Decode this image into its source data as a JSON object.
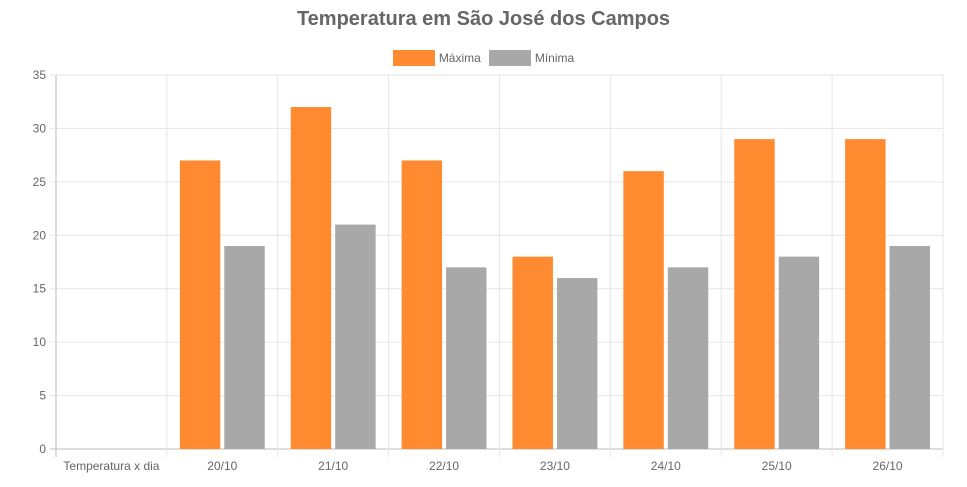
{
  "chart_data": {
    "type": "bar",
    "title": "Temperatura em São José dos Campos",
    "categories": [
      "Temperatura x dia",
      "20/10",
      "21/10",
      "22/10",
      "23/10",
      "24/10",
      "25/10",
      "26/10"
    ],
    "series": [
      {
        "name": "Máxima",
        "color": "#FF8A30",
        "values": [
          null,
          27,
          32,
          27,
          18,
          26,
          29,
          29
        ]
      },
      {
        "name": "Mínima",
        "color": "#A8A8A8",
        "values": [
          null,
          19,
          21,
          17,
          16,
          17,
          18,
          19
        ]
      }
    ],
    "ylim": [
      0,
      35
    ],
    "yticks": [
      0,
      5,
      10,
      15,
      20,
      25,
      30,
      35
    ],
    "grid": true,
    "legend_position": "top"
  }
}
